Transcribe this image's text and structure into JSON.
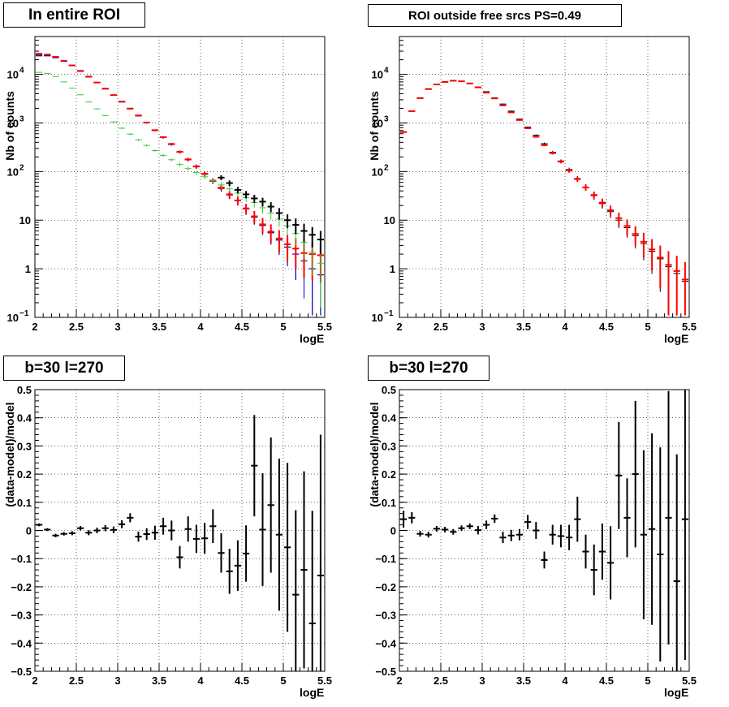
{
  "panels": [
    {
      "title": "In entire ROI",
      "xlabel": "logE",
      "ylabel": "Nb of counts"
    },
    {
      "title": "ROI outside free srcs PS=0.49",
      "xlabel": "logE",
      "ylabel": "Nb of counts"
    },
    {
      "title": "b=30 l=270",
      "xlabel": "logE",
      "ylabel": "(data-model)/model"
    },
    {
      "title": "b=30 l=270",
      "xlabel": "logE",
      "ylabel": "(data-model)/model"
    }
  ],
  "ticks": {
    "x": [
      "2",
      "2.5",
      "3",
      "3.5",
      "4",
      "4.5",
      "5",
      "5.5"
    ],
    "log_y": [
      "10",
      "1",
      "10",
      "10",
      "10",
      "10",
      "10"
    ],
    "log_y_exp": [
      "−1",
      "",
      "",
      "2",
      "3",
      "4",
      ""
    ],
    "ratio_y": [
      "−0.5",
      "−0.4",
      "−0.3",
      "−0.2",
      "−0.1",
      "0",
      "0.1",
      "0.2",
      "0.3",
      "0.4",
      "0.5"
    ]
  },
  "colors": {
    "data": "#000000",
    "model_total": "#ff0000",
    "model_blue": "#0000cc",
    "model_green": "#33cc33"
  },
  "chart_data": [
    {
      "type": "scatter",
      "title": "In entire ROI",
      "xlabel": "logE",
      "ylabel": "Nb of counts",
      "xlim": [
        2,
        5.5
      ],
      "ylim": [
        0.1,
        60000
      ],
      "yscale": "log",
      "grid": true,
      "bin_width": 0.1,
      "x": [
        2.05,
        2.15,
        2.25,
        2.35,
        2.45,
        2.55,
        2.65,
        2.75,
        2.85,
        2.95,
        3.05,
        3.15,
        3.25,
        3.35,
        3.45,
        3.55,
        3.65,
        3.75,
        3.85,
        3.95,
        4.05,
        4.15,
        4.25,
        4.35,
        4.45,
        4.55,
        4.65,
        4.75,
        4.85,
        4.95,
        5.05,
        5.15,
        5.25,
        5.35,
        5.45
      ],
      "series": [
        {
          "color": "#000000",
          "values": [
            24000,
            24000,
            22000,
            18500,
            15000,
            11500,
            8800,
            6700,
            5000,
            3700,
            2700,
            1950,
            1400,
            1000,
            700,
            500,
            360,
            250,
            175,
            125,
            88,
            63,
            45,
            33,
            25,
            17,
            11.5,
            7.8,
            5.5,
            3.9,
            2.8,
            2.0,
            1.45,
            1.0,
            0.75
          ]
        },
        {
          "color": "#0000cc",
          "values": [
            25000,
            24500,
            22000,
            18500,
            15000,
            11500,
            8800,
            6700,
            5000,
            3700,
            2700,
            1950,
            1400,
            1000,
            700,
            500,
            360,
            250,
            175,
            125,
            88,
            63,
            45,
            33,
            25,
            17,
            11.5,
            7.8,
            5.5,
            3.9,
            2.8,
            2.0,
            1.45,
            1.0,
            0.75
          ]
        },
        {
          "color": "#ff0000",
          "values": [
            26500,
            25500,
            23000,
            19000,
            15300,
            11800,
            9000,
            6800,
            5100,
            3750,
            2750,
            1980,
            1430,
            1020,
            710,
            510,
            370,
            255,
            178,
            128,
            90,
            65,
            47,
            34,
            25.5,
            17.5,
            12,
            8.2,
            5.8,
            4.2,
            3.2,
            2.6,
            2.1,
            2.0,
            1.9
          ]
        },
        {
          "color": "#33cc33",
          "values": [
            11000,
            10500,
            9000,
            7000,
            5200,
            3800,
            2700,
            1950,
            1420,
            1050,
            780,
            590,
            450,
            345,
            270,
            215,
            175,
            140,
            115,
            95,
            78,
            64,
            53,
            44,
            36,
            29,
            23,
            18,
            14,
            10.5,
            7.6,
            5.3,
            3.5,
            2.2,
            1.3
          ]
        }
      ],
      "data_points": {
        "x": [
          4.25,
          4.35,
          4.45,
          4.55,
          4.65,
          4.75,
          4.85,
          4.95,
          5.05,
          5.15,
          5.25,
          5.35,
          5.45
        ],
        "y": [
          75,
          58,
          42,
          34,
          28,
          24,
          19,
          14,
          10,
          8,
          6,
          5,
          4
        ]
      }
    },
    {
      "type": "scatter",
      "title": "ROI outside free srcs PS=0.49",
      "xlabel": "logE",
      "ylabel": "Nb of counts",
      "xlim": [
        2,
        5.5
      ],
      "ylim": [
        0.1,
        60000
      ],
      "yscale": "log",
      "grid": true,
      "bin_width": 0.1,
      "x": [
        2.05,
        2.15,
        2.25,
        2.35,
        2.45,
        2.55,
        2.65,
        2.75,
        2.85,
        2.95,
        3.05,
        3.15,
        3.25,
        3.35,
        3.45,
        3.55,
        3.65,
        3.75,
        3.85,
        3.95,
        4.05,
        4.15,
        4.25,
        4.35,
        4.45,
        4.55,
        4.65,
        4.75,
        4.85,
        4.95,
        5.05,
        5.15,
        5.25,
        5.35,
        5.45
      ],
      "series": [
        {
          "color": "#000000",
          "values": [
            650,
            1750,
            3200,
            4900,
            6100,
            6900,
            7300,
            7200,
            6500,
            5500,
            4400,
            3300,
            2450,
            1750,
            1200,
            820,
            560,
            375,
            250,
            165,
            110,
            72,
            48,
            32,
            22,
            15,
            10,
            7,
            4.8,
            3.3,
            2.3,
            1.6,
            1.1,
            0.8,
            0.55
          ]
        },
        {
          "color": "#ff0000",
          "values": [
            650,
            1750,
            3250,
            5000,
            6200,
            7000,
            7400,
            7200,
            6500,
            5400,
            4200,
            3200,
            2300,
            1650,
            1150,
            780,
            520,
            350,
            240,
            160,
            105,
            70,
            47,
            33,
            23,
            16,
            11,
            7.6,
            5.2,
            3.6,
            2.5,
            1.7,
            1.2,
            0.9,
            0.6
          ]
        }
      ]
    },
    {
      "type": "scatter",
      "title": "b=30 l=270",
      "xlabel": "logE",
      "ylabel": "(data-model)/model",
      "xlim": [
        2,
        5.5
      ],
      "ylim": [
        -0.5,
        0.5
      ],
      "grid": true,
      "bin_width": 0.1,
      "x": [
        2.05,
        2.15,
        2.25,
        2.35,
        2.45,
        2.55,
        2.65,
        2.75,
        2.85,
        2.95,
        3.05,
        3.15,
        3.25,
        3.35,
        3.45,
        3.55,
        3.65,
        3.75,
        3.85,
        3.95,
        4.05,
        4.15,
        4.25,
        4.35,
        4.45,
        4.55,
        4.65,
        4.75,
        4.85,
        4.95,
        5.05,
        5.15,
        5.25,
        5.35,
        5.45
      ],
      "values": [
        0.02,
        0.003,
        -0.018,
        -0.012,
        -0.01,
        0.008,
        -0.008,
        0.0,
        0.008,
        0.002,
        0.022,
        0.045,
        -0.022,
        -0.013,
        -0.008,
        0.015,
        0.0,
        -0.095,
        0.005,
        -0.03,
        -0.028,
        0.015,
        -0.08,
        -0.145,
        -0.125,
        -0.082,
        0.23,
        0.003,
        0.09,
        -0.015,
        -0.06,
        -0.228,
        -0.14,
        -0.33,
        -0.16
      ],
      "errors": [
        0.005,
        0.005,
        0.006,
        0.006,
        0.007,
        0.008,
        0.009,
        0.01,
        0.011,
        0.012,
        0.014,
        0.016,
        0.018,
        0.021,
        0.025,
        0.03,
        0.035,
        0.04,
        0.045,
        0.05,
        0.055,
        0.06,
        0.07,
        0.08,
        0.09,
        0.1,
        0.18,
        0.2,
        0.24,
        0.27,
        0.3,
        0.3,
        0.35,
        0.4,
        0.5
      ]
    },
    {
      "type": "scatter",
      "title": "b=30 l=270",
      "xlabel": "logE",
      "ylabel": "(data-model)/model",
      "xlim": [
        2,
        5.5
      ],
      "ylim": [
        -0.5,
        0.5
      ],
      "grid": true,
      "bin_width": 0.1,
      "x": [
        2.05,
        2.15,
        2.25,
        2.35,
        2.45,
        2.55,
        2.65,
        2.75,
        2.85,
        2.95,
        3.05,
        3.15,
        3.25,
        3.35,
        3.45,
        3.55,
        3.65,
        3.75,
        3.85,
        3.95,
        4.05,
        4.15,
        4.25,
        4.35,
        4.45,
        4.55,
        4.65,
        4.75,
        4.85,
        4.95,
        5.05,
        5.15,
        5.25,
        5.35,
        5.45
      ],
      "values": [
        0.04,
        0.045,
        -0.012,
        -0.015,
        0.006,
        0.003,
        -0.005,
        0.008,
        0.015,
        0.001,
        0.02,
        0.042,
        -0.025,
        -0.018,
        -0.015,
        0.03,
        0.0,
        -0.105,
        -0.015,
        -0.02,
        -0.025,
        0.04,
        -0.075,
        -0.14,
        -0.075,
        -0.115,
        0.195,
        0.045,
        0.2,
        -0.015,
        0.005,
        -0.085,
        0.045,
        -0.18,
        0.04
      ],
      "errors": [
        0.03,
        0.02,
        0.01,
        0.01,
        0.01,
        0.01,
        0.01,
        0.01,
        0.01,
        0.015,
        0.015,
        0.015,
        0.02,
        0.02,
        0.02,
        0.025,
        0.03,
        0.03,
        0.035,
        0.04,
        0.045,
        0.08,
        0.06,
        0.09,
        0.1,
        0.13,
        0.19,
        0.14,
        0.26,
        0.3,
        0.34,
        0.38,
        0.45,
        0.45,
        0.5
      ]
    }
  ]
}
